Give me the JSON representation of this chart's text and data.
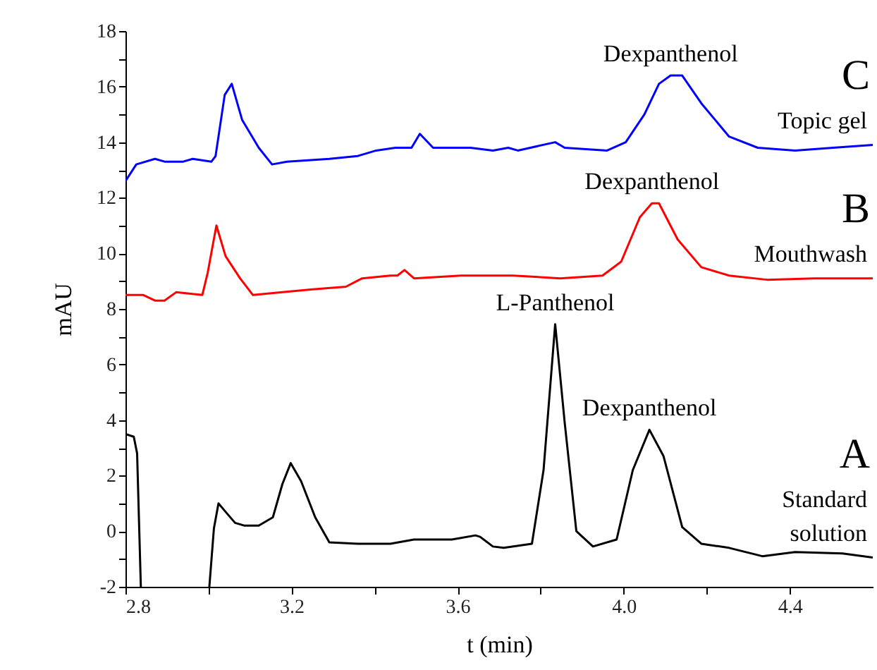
{
  "chart_data": {
    "type": "line",
    "xlabel": "t (min)",
    "ylabel": "mAU",
    "xlim": [
      2.8,
      4.6
    ],
    "ylim": [
      -2,
      18
    ],
    "xticks": [
      2.8,
      {
        "value": 3.0,
        "label": null
      },
      3.2,
      {
        "value": 3.4,
        "label": null
      },
      3.6,
      {
        "value": 3.8,
        "label": null
      },
      {
        "value": 4.0,
        "label": "4.0"
      },
      {
        "value": 4.2,
        "label": null
      },
      4.4
    ],
    "yticks": [
      -2,
      {
        "value": -1,
        "label": null
      },
      0,
      {
        "value": 1,
        "label": null
      },
      2,
      {
        "value": 3,
        "label": null
      },
      4,
      {
        "value": 5,
        "label": null
      },
      6,
      {
        "value": 7,
        "label": null
      },
      8,
      {
        "value": 9,
        "label": null
      },
      10,
      {
        "value": 11,
        "label": null
      },
      12,
      {
        "value": 13,
        "label": null
      },
      14,
      {
        "value": 15,
        "label": null
      },
      16,
      {
        "value": 17,
        "label": null
      },
      18
    ],
    "grid": false,
    "legend": false,
    "line_style": "solid",
    "marker": "none",
    "series": [
      {
        "name": "Topic gel",
        "color": "#0000ff",
        "x": [
          2.8,
          2.826,
          2.871,
          2.894,
          2.939,
          2.962,
          3.007,
          3.017,
          3.039,
          3.056,
          3.081,
          3.121,
          3.153,
          3.189,
          3.291,
          3.359,
          3.404,
          3.45,
          3.489,
          3.509,
          3.541,
          3.631,
          3.685,
          3.722,
          3.745,
          3.835,
          3.858,
          3.96,
          4.005,
          4.05,
          4.085,
          4.113,
          4.141,
          4.187,
          4.254,
          4.323,
          4.413,
          4.504,
          4.6
        ],
        "values": [
          12.6,
          13.2,
          13.4,
          13.3,
          13.3,
          13.4,
          13.3,
          13.5,
          15.7,
          16.1,
          14.8,
          13.8,
          13.2,
          13.3,
          13.4,
          13.5,
          13.7,
          13.8,
          13.8,
          14.3,
          13.8,
          13.8,
          13.7,
          13.8,
          13.7,
          14.0,
          13.8,
          13.7,
          14.0,
          15.0,
          16.1,
          16.4,
          16.4,
          15.4,
          14.2,
          13.8,
          13.7,
          13.8,
          13.9
        ]
      },
      {
        "name": "Mouthwash",
        "color": "#ff0000",
        "x": [
          2.8,
          2.843,
          2.871,
          2.894,
          2.922,
          2.985,
          2.998,
          3.019,
          3.041,
          3.076,
          3.107,
          3.178,
          3.246,
          3.331,
          3.37,
          3.438,
          3.455,
          3.472,
          3.495,
          3.608,
          3.676,
          3.733,
          3.847,
          3.949,
          3.994,
          4.039,
          4.068,
          4.085,
          4.13,
          4.187,
          4.254,
          4.345,
          4.459,
          4.6
        ],
        "values": [
          8.5,
          8.5,
          8.3,
          8.3,
          8.6,
          8.5,
          9.3,
          11.0,
          9.9,
          9.1,
          8.5,
          8.6,
          8.7,
          8.8,
          9.1,
          9.2,
          9.2,
          9.4,
          9.1,
          9.2,
          9.2,
          9.2,
          9.1,
          9.2,
          9.7,
          11.3,
          11.8,
          11.8,
          10.5,
          9.5,
          9.2,
          9.05,
          9.1,
          9.1
        ]
      },
      {
        "name": "Standard solution",
        "color": "#000000",
        "x": [
          2.8,
          2.82,
          2.828,
          2.837,
          2.92,
          3.002,
          3.013,
          3.024,
          3.041,
          3.064,
          3.087,
          3.121,
          3.155,
          3.178,
          3.198,
          3.223,
          3.257,
          3.291,
          3.359,
          3.438,
          3.495,
          3.586,
          3.643,
          3.654,
          3.685,
          3.711,
          3.779,
          3.807,
          3.835,
          3.858,
          3.886,
          3.926,
          3.983,
          4.022,
          4.062,
          4.096,
          4.141,
          4.187,
          4.254,
          4.334,
          4.413,
          4.527,
          4.6
        ],
        "values": [
          3.5,
          3.4,
          2.8,
          -2,
          null,
          -2,
          0.1,
          1.0,
          0.7,
          0.3,
          0.2,
          0.2,
          0.5,
          1.7,
          2.45,
          1.8,
          0.5,
          -0.4,
          -0.45,
          -0.45,
          -0.3,
          -0.3,
          -0.15,
          -0.2,
          -0.55,
          -0.6,
          -0.45,
          2.2,
          7.45,
          3.9,
          0,
          -0.55,
          -0.3,
          2.2,
          3.65,
          2.7,
          0.15,
          -0.45,
          -0.6,
          -0.9,
          -0.75,
          -0.8,
          -0.95
        ]
      }
    ],
    "annotations": [
      {
        "text": "Dexpanthenol",
        "x": 4.113,
        "y": 16.4
      },
      {
        "text": "Dexpanthenol",
        "x": 4.068,
        "y": 11.8
      },
      {
        "text": "L-Panthenol",
        "x": 3.835,
        "y": 7.45
      },
      {
        "text": "Dexpanthenol",
        "x": 4.062,
        "y": 3.65
      },
      "C",
      "B",
      "A"
    ]
  }
}
